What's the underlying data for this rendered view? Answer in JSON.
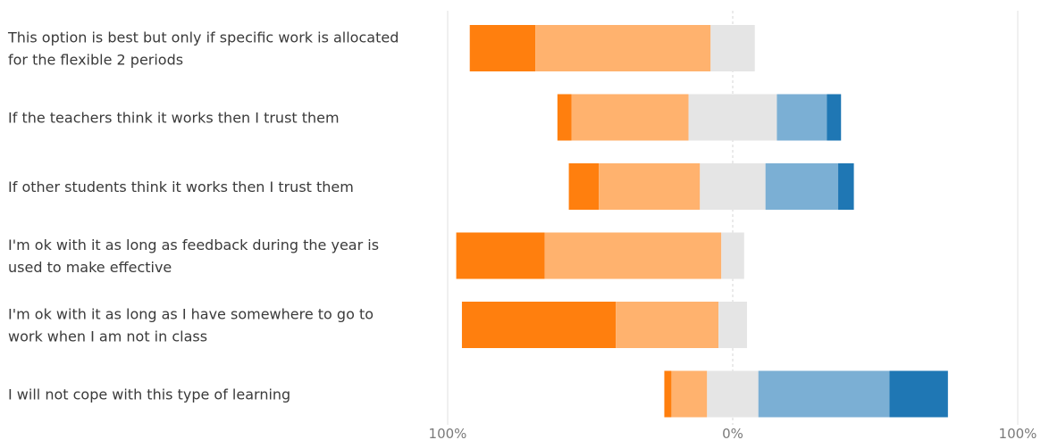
{
  "chart_data": {
    "type": "bar",
    "subtype": "diverging-stacked-horizontal",
    "title": "",
    "xlabel": "",
    "ylabel": "",
    "xlim": [
      -100,
      100
    ],
    "x_ticks": [
      {
        "value": -100,
        "label": "100%"
      },
      {
        "value": 0,
        "label": "0%"
      },
      {
        "value": 100,
        "label": "100%"
      }
    ],
    "grid": "vertical-at-ticks",
    "legend": "none",
    "categories": [
      [
        "This option is best but only if specific work is allocated",
        "for the flexible 2 periods"
      ],
      [
        "If the teachers think it works then I trust them"
      ],
      [
        "If other students think it works then I trust them"
      ],
      [
        "I'm ok with it as long as feedback during the year is",
        "used to make effective"
      ],
      [
        "I'm ok with it as long as I have somewhere to go to",
        "work when I am not in class"
      ],
      [
        "I will not cope with this type of learning"
      ]
    ],
    "series": [
      {
        "color": "#ff7f0e",
        "values": [
          23,
          5,
          10.5,
          31,
          54,
          2.5
        ]
      },
      {
        "color": "#ffb26e",
        "values": [
          61.5,
          41,
          35.5,
          62,
          36,
          12.5
        ]
      },
      {
        "color": "#e5e5e5",
        "values": [
          15.5,
          31,
          23,
          8,
          10,
          18
        ]
      },
      {
        "color": "#7bafd4",
        "values": [
          0,
          17.5,
          25.5,
          0,
          0,
          46
        ]
      },
      {
        "color": "#1f77b4",
        "values": [
          0,
          5,
          5.5,
          0,
          0,
          20.5
        ]
      }
    ],
    "neutral_series_index": 2
  }
}
